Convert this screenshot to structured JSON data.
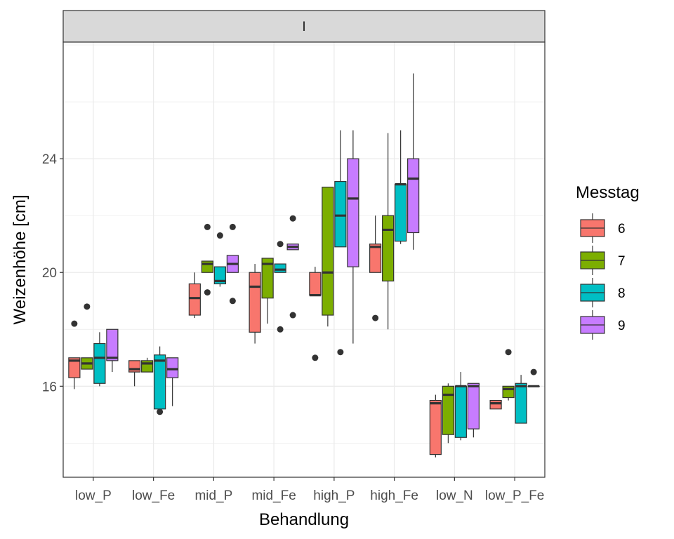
{
  "chart_data": {
    "type": "boxplot",
    "facet_label": "I",
    "xlabel": "Behandlung",
    "ylabel": "Weizenhöhe [cm]",
    "ylim": [
      12.8,
      28.1
    ],
    "y_ticks": [
      16,
      20,
      24
    ],
    "grid": true,
    "legend": {
      "title": "Messtag",
      "placement": "right",
      "entries": [
        {
          "label": "6",
          "color": "#F8766D"
        },
        {
          "label": "7",
          "color": "#7CAE00"
        },
        {
          "label": "8",
          "color": "#00BFC4"
        },
        {
          "label": "9",
          "color": "#C77CFF"
        }
      ]
    },
    "categories": [
      "low_P",
      "low_Fe",
      "mid_P",
      "mid_Fe",
      "high_P",
      "high_Fe",
      "low_N",
      "low_P_Fe"
    ],
    "series": [
      {
        "name": "6",
        "color": "#F8766D",
        "boxes": [
          {
            "min": 15.9,
            "q1": 16.3,
            "median": 16.9,
            "q3": 17.0,
            "max": 17.0,
            "outliers": [
              18.2
            ]
          },
          {
            "min": 16.0,
            "q1": 16.5,
            "median": 16.6,
            "q3": 16.9,
            "max": 16.9,
            "outliers": []
          },
          {
            "min": 18.4,
            "q1": 18.5,
            "median": 19.1,
            "q3": 19.6,
            "max": 20.0,
            "outliers": []
          },
          {
            "min": 17.5,
            "q1": 17.9,
            "median": 19.5,
            "q3": 20.0,
            "max": 20.3,
            "outliers": []
          },
          {
            "min": 19.2,
            "q1": 19.2,
            "median": 19.2,
            "q3": 20.0,
            "max": 20.2,
            "outliers": [
              17.0
            ]
          },
          {
            "min": 20.0,
            "q1": 20.0,
            "median": 20.9,
            "q3": 21.0,
            "max": 22.0,
            "outliers": [
              18.4
            ]
          },
          {
            "min": 13.5,
            "q1": 13.6,
            "median": 15.4,
            "q3": 15.5,
            "max": 15.7,
            "outliers": []
          },
          {
            "min": 15.2,
            "q1": 15.2,
            "median": 15.4,
            "q3": 15.5,
            "max": 15.5,
            "outliers": []
          }
        ]
      },
      {
        "name": "7",
        "color": "#7CAE00",
        "boxes": [
          {
            "min": 16.6,
            "q1": 16.6,
            "median": 16.8,
            "q3": 17.0,
            "max": 17.0,
            "outliers": [
              18.8
            ]
          },
          {
            "min": 16.5,
            "q1": 16.5,
            "median": 16.8,
            "q3": 16.9,
            "max": 17.0,
            "outliers": []
          },
          {
            "min": 20.0,
            "q1": 20.0,
            "median": 20.3,
            "q3": 20.4,
            "max": 20.4,
            "outliers": [
              21.6,
              19.3
            ]
          },
          {
            "min": 18.2,
            "q1": 19.1,
            "median": 20.3,
            "q3": 20.5,
            "max": 20.5,
            "outliers": []
          },
          {
            "min": 18.1,
            "q1": 18.5,
            "median": 20.0,
            "q3": 23.0,
            "max": 23.0,
            "outliers": []
          },
          {
            "min": 18.0,
            "q1": 19.7,
            "median": 21.5,
            "q3": 22.0,
            "max": 24.9,
            "outliers": []
          },
          {
            "min": 14.0,
            "q1": 14.3,
            "median": 15.7,
            "q3": 16.0,
            "max": 16.1,
            "outliers": []
          },
          {
            "min": 15.5,
            "q1": 15.6,
            "median": 15.9,
            "q3": 16.0,
            "max": 16.0,
            "outliers": [
              17.2
            ]
          }
        ]
      },
      {
        "name": "8",
        "color": "#00BFC4",
        "boxes": [
          {
            "min": 16.0,
            "q1": 16.1,
            "median": 17.0,
            "q3": 17.5,
            "max": 17.9,
            "outliers": []
          },
          {
            "min": 15.1,
            "q1": 15.2,
            "median": 16.9,
            "q3": 17.1,
            "max": 17.4,
            "outliers": [
              15.1
            ]
          },
          {
            "min": 19.5,
            "q1": 19.6,
            "median": 19.7,
            "q3": 20.2,
            "max": 20.2,
            "outliers": [
              21.3
            ]
          },
          {
            "min": 20.0,
            "q1": 20.0,
            "median": 20.1,
            "q3": 20.3,
            "max": 20.3,
            "outliers": [
              21.0,
              18.0
            ]
          },
          {
            "min": 20.9,
            "q1": 20.9,
            "median": 22.0,
            "q3": 23.2,
            "max": 25.0,
            "outliers": [
              17.2
            ]
          },
          {
            "min": 21.0,
            "q1": 21.1,
            "median": 23.1,
            "q3": 23.1,
            "max": 25.0,
            "outliers": []
          },
          {
            "min": 14.1,
            "q1": 14.2,
            "median": 16.0,
            "q3": 16.0,
            "max": 16.5,
            "outliers": []
          },
          {
            "min": 14.7,
            "q1": 14.7,
            "median": 16.0,
            "q3": 16.1,
            "max": 16.4,
            "outliers": []
          }
        ]
      },
      {
        "name": "9",
        "color": "#C77CFF",
        "boxes": [
          {
            "min": 16.5,
            "q1": 16.9,
            "median": 17.0,
            "q3": 18.0,
            "max": 18.0,
            "outliers": []
          },
          {
            "min": 15.3,
            "q1": 16.3,
            "median": 16.6,
            "q3": 17.0,
            "max": 17.0,
            "outliers": []
          },
          {
            "min": 20.0,
            "q1": 20.0,
            "median": 20.3,
            "q3": 20.6,
            "max": 20.6,
            "outliers": [
              21.6,
              19.0
            ]
          },
          {
            "min": 20.8,
            "q1": 20.8,
            "median": 20.9,
            "q3": 21.0,
            "max": 21.0,
            "outliers": [
              21.9,
              18.5
            ]
          },
          {
            "min": 17.5,
            "q1": 20.2,
            "median": 22.6,
            "q3": 24.0,
            "max": 25.0,
            "outliers": []
          },
          {
            "min": 20.8,
            "q1": 21.4,
            "median": 23.3,
            "q3": 24.0,
            "max": 27.0,
            "outliers": []
          },
          {
            "min": 14.2,
            "q1": 14.5,
            "median": 16.0,
            "q3": 16.1,
            "max": 16.1,
            "outliers": []
          },
          {
            "min": 16.0,
            "q1": 16.0,
            "median": 16.0,
            "q3": 16.0,
            "max": 16.0,
            "outliers": [
              16.5
            ]
          }
        ]
      }
    ]
  }
}
